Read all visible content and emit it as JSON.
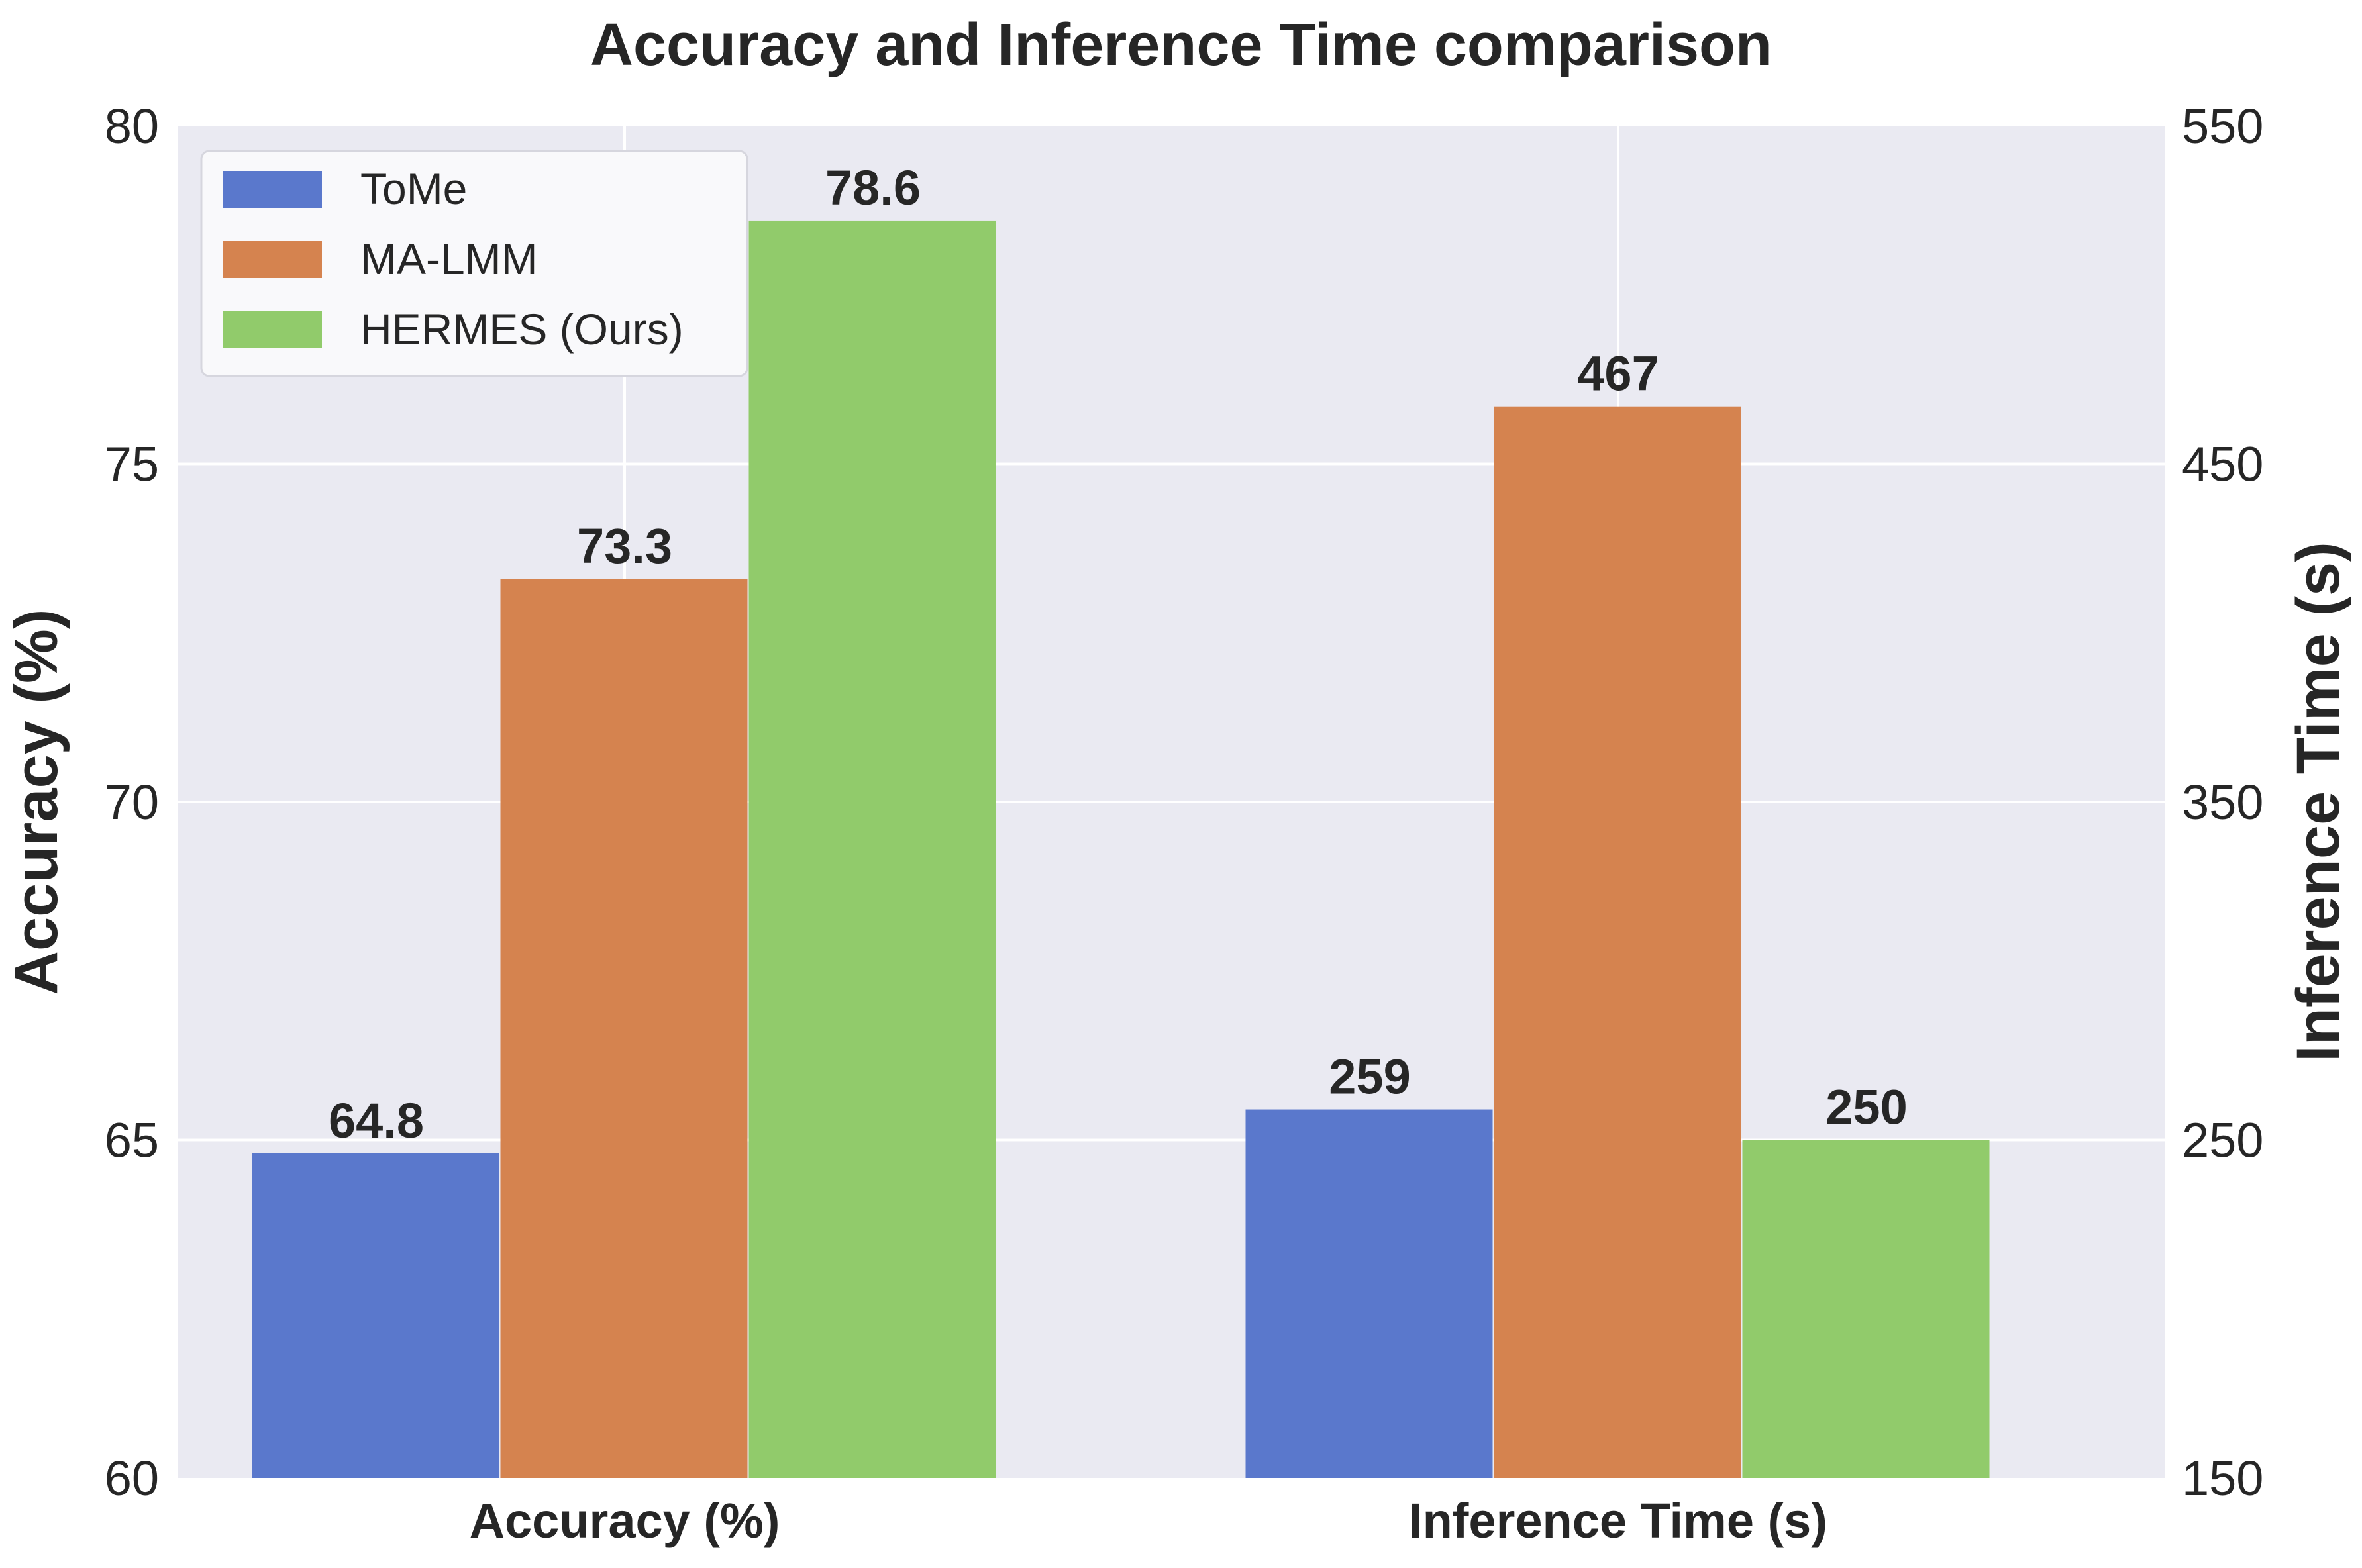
{
  "chart_data": {
    "type": "bar",
    "title": "Accuracy and Inference Time comparison",
    "categories": [
      "Accuracy (%)",
      "Inference Time (s)"
    ],
    "series": [
      {
        "name": "ToMe",
        "color": "#5a78cc",
        "values": [
          64.8,
          259
        ],
        "labels": [
          "64.8",
          "259"
        ]
      },
      {
        "name": "MA-LMM",
        "color": "#d5834f",
        "values": [
          73.3,
          467
        ],
        "labels": [
          "73.3",
          "467"
        ]
      },
      {
        "name": "HERMES (Ours)",
        "color": "#91cb6b",
        "values": [
          78.6,
          250
        ],
        "labels": [
          "78.6",
          "250"
        ]
      }
    ],
    "y_left": {
      "label": "Accuracy (%)",
      "lim": [
        60,
        80
      ],
      "ticks": [
        "60",
        "65",
        "70",
        "75",
        "80"
      ]
    },
    "y_right": {
      "label": "Inference Time (s)",
      "lim": [
        150,
        550
      ],
      "ticks": [
        "150",
        "250",
        "350",
        "450",
        "550"
      ]
    },
    "axis_for_category": [
      "left",
      "right"
    ],
    "grid": true,
    "legend_position": "top-left",
    "plot_background": "#eaeaf2"
  }
}
